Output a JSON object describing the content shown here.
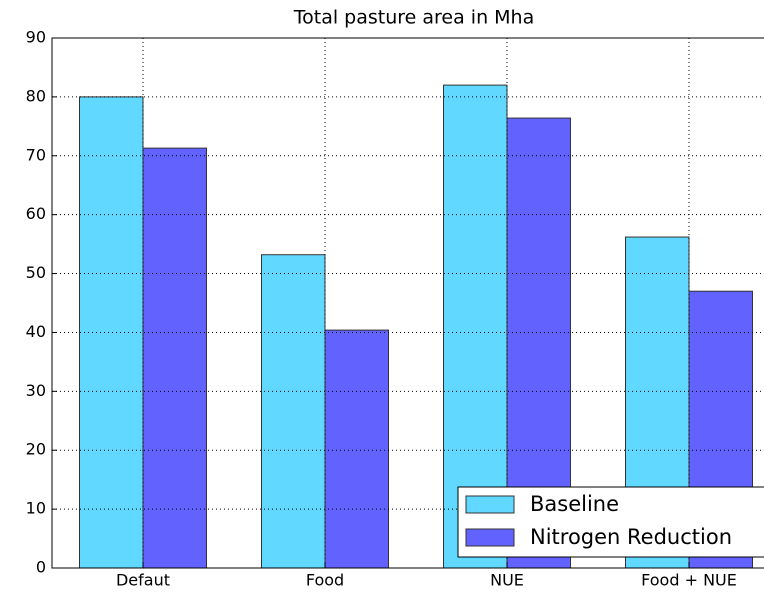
{
  "chart_data": {
    "type": "bar",
    "title": "Total pasture area in Mha",
    "categories": [
      "Defaut",
      "Food",
      "NUE",
      "Food + NUE"
    ],
    "series": [
      {
        "name": "Baseline",
        "color": "#60d8ff",
        "values": [
          80.0,
          53.2,
          82.0,
          56.2
        ]
      },
      {
        "name": "Nitrogen Reduction",
        "color": "#6262ff",
        "values": [
          71.3,
          40.4,
          76.4,
          47.0
        ]
      }
    ],
    "ylim": [
      0,
      90
    ],
    "yticks": [
      0,
      10,
      20,
      30,
      40,
      50,
      60,
      70,
      80,
      90
    ],
    "grid": true,
    "legend": "lower right"
  }
}
